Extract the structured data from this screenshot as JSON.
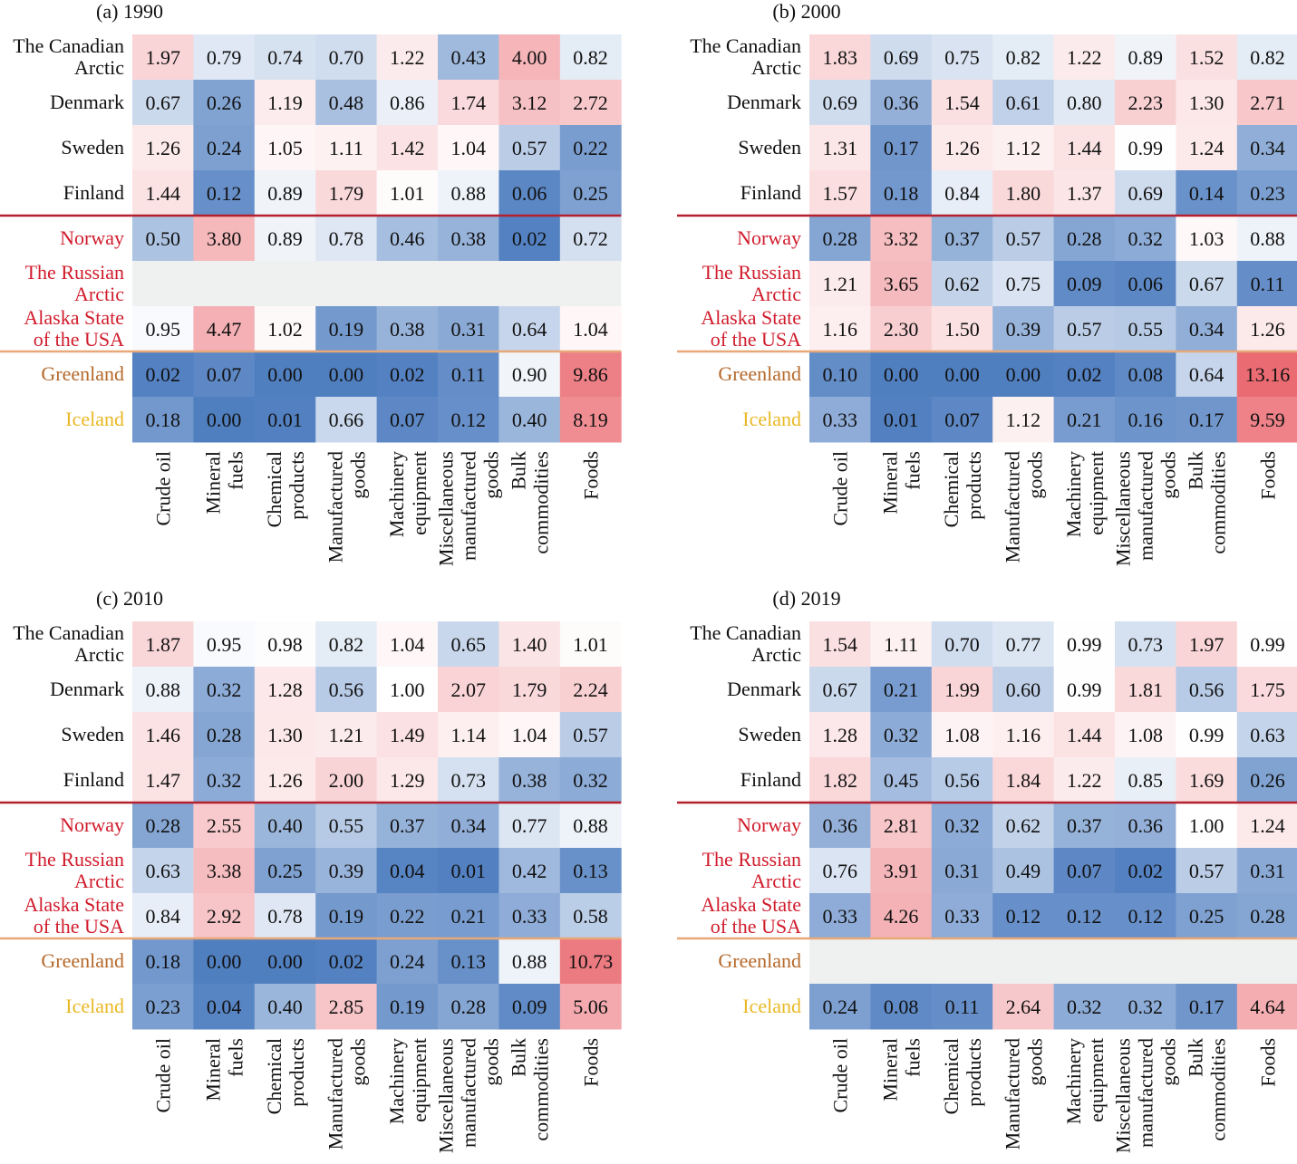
{
  "chart_data": {
    "type": "heatmap",
    "columns": [
      [
        "Crude oil"
      ],
      [
        "Mineral",
        "fuels"
      ],
      [
        "Chemical",
        "products"
      ],
      [
        "Manufactured",
        "goods"
      ],
      [
        "Machinery",
        "equipment"
      ],
      [
        "Miscellaneous",
        "manufactured",
        "goods"
      ],
      [
        "Bulk",
        "commodities"
      ],
      [
        "Foods"
      ]
    ],
    "rows": [
      {
        "label": [
          "The Canadian",
          "Arctic"
        ],
        "group": "black"
      },
      {
        "label": [
          "Denmark"
        ],
        "group": "black"
      },
      {
        "label": [
          "Sweden"
        ],
        "group": "black"
      },
      {
        "label": [
          "Finland"
        ],
        "group": "black"
      },
      {
        "label": [
          "Norway"
        ],
        "group": "red"
      },
      {
        "label": [
          "The Russian",
          "Arctic"
        ],
        "group": "red"
      },
      {
        "label": [
          "Alaska State",
          "of the USA"
        ],
        "group": "red"
      },
      {
        "label": [
          "Greenland"
        ],
        "group": "brown"
      },
      {
        "label": [
          "Iceland"
        ],
        "group": "gold"
      }
    ],
    "group_colors": {
      "black": "#111111",
      "red": "#d01c2c",
      "brown": "#b5692b",
      "gold": "#e9b824"
    },
    "separator_colors": [
      "#b5202e",
      "#e8a878"
    ],
    "missing_color": "#eff1f0",
    "color_scale": {
      "low": "#4c7cbf",
      "mid": "#ffffff",
      "high": "#e85a62",
      "min": 0,
      "center": 1,
      "max": 13.16
    },
    "panels": [
      {
        "title": "(a) 1990",
        "values": [
          [
            1.97,
            0.79,
            0.74,
            0.7,
            1.22,
            0.43,
            4.0,
            0.82
          ],
          [
            0.67,
            0.26,
            1.19,
            0.48,
            0.86,
            1.74,
            3.12,
            2.72
          ],
          [
            1.26,
            0.24,
            1.05,
            1.11,
            1.42,
            1.04,
            0.57,
            0.22
          ],
          [
            1.44,
            0.12,
            0.89,
            1.79,
            1.01,
            0.88,
            0.06,
            0.25
          ],
          [
            0.5,
            3.8,
            0.89,
            0.78,
            0.46,
            0.38,
            0.02,
            0.72
          ],
          null,
          [
            0.95,
            4.47,
            1.02,
            0.19,
            0.38,
            0.31,
            0.64,
            1.04
          ],
          [
            0.02,
            0.07,
            0.0,
            0.0,
            0.02,
            0.11,
            0.9,
            9.86
          ],
          [
            0.18,
            0.0,
            0.01,
            0.66,
            0.07,
            0.12,
            0.4,
            8.19
          ]
        ]
      },
      {
        "title": "(b) 2000",
        "values": [
          [
            1.83,
            0.69,
            0.75,
            0.82,
            1.22,
            0.89,
            1.52,
            0.82
          ],
          [
            0.69,
            0.36,
            1.54,
            0.61,
            0.8,
            2.23,
            1.3,
            2.71
          ],
          [
            1.31,
            0.17,
            1.26,
            1.12,
            1.44,
            0.99,
            1.24,
            0.34
          ],
          [
            1.57,
            0.18,
            0.84,
            1.8,
            1.37,
            0.69,
            0.14,
            0.23
          ],
          [
            0.28,
            3.32,
            0.37,
            0.57,
            0.28,
            0.32,
            1.03,
            0.88
          ],
          [
            1.21,
            3.65,
            0.62,
            0.75,
            0.09,
            0.06,
            0.67,
            0.11
          ],
          [
            1.16,
            2.3,
            1.5,
            0.39,
            0.57,
            0.55,
            0.34,
            1.26
          ],
          [
            0.1,
            0.0,
            0.0,
            0.0,
            0.02,
            0.08,
            0.64,
            13.16
          ],
          [
            0.33,
            0.01,
            0.07,
            1.12,
            0.21,
            0.16,
            0.17,
            9.59
          ]
        ]
      },
      {
        "title": "(c) 2010",
        "values": [
          [
            1.87,
            0.95,
            0.98,
            0.82,
            1.04,
            0.65,
            1.4,
            1.01
          ],
          [
            0.88,
            0.32,
            1.28,
            0.56,
            1.0,
            2.07,
            1.79,
            2.24
          ],
          [
            1.46,
            0.28,
            1.3,
            1.21,
            1.49,
            1.14,
            1.04,
            0.57
          ],
          [
            1.47,
            0.32,
            1.26,
            2.0,
            1.29,
            0.73,
            0.38,
            0.32
          ],
          [
            0.28,
            2.55,
            0.4,
            0.55,
            0.37,
            0.34,
            0.77,
            0.88
          ],
          [
            0.63,
            3.38,
            0.25,
            0.39,
            0.04,
            0.01,
            0.42,
            0.13
          ],
          [
            0.84,
            2.92,
            0.78,
            0.19,
            0.22,
            0.21,
            0.33,
            0.58
          ],
          [
            0.18,
            0.0,
            0.0,
            0.02,
            0.24,
            0.13,
            0.88,
            10.73
          ],
          [
            0.23,
            0.04,
            0.4,
            2.85,
            0.19,
            0.28,
            0.09,
            5.06
          ]
        ]
      },
      {
        "title": "(d) 2019",
        "values": [
          [
            1.54,
            1.11,
            0.7,
            0.77,
            0.99,
            0.73,
            1.97,
            0.99
          ],
          [
            0.67,
            0.21,
            1.99,
            0.6,
            0.99,
            1.81,
            0.56,
            1.75
          ],
          [
            1.28,
            0.32,
            1.08,
            1.16,
            1.44,
            1.08,
            0.99,
            0.63
          ],
          [
            1.82,
            0.45,
            0.56,
            1.84,
            1.22,
            0.85,
            1.69,
            0.26
          ],
          [
            0.36,
            2.81,
            0.32,
            0.62,
            0.37,
            0.36,
            1.0,
            1.24
          ],
          [
            0.76,
            3.91,
            0.31,
            0.49,
            0.07,
            0.02,
            0.57,
            0.31
          ],
          [
            0.33,
            4.26,
            0.33,
            0.12,
            0.12,
            0.12,
            0.25,
            0.28
          ],
          null,
          [
            0.24,
            0.08,
            0.11,
            2.64,
            0.32,
            0.32,
            0.17,
            4.64
          ]
        ]
      }
    ]
  }
}
